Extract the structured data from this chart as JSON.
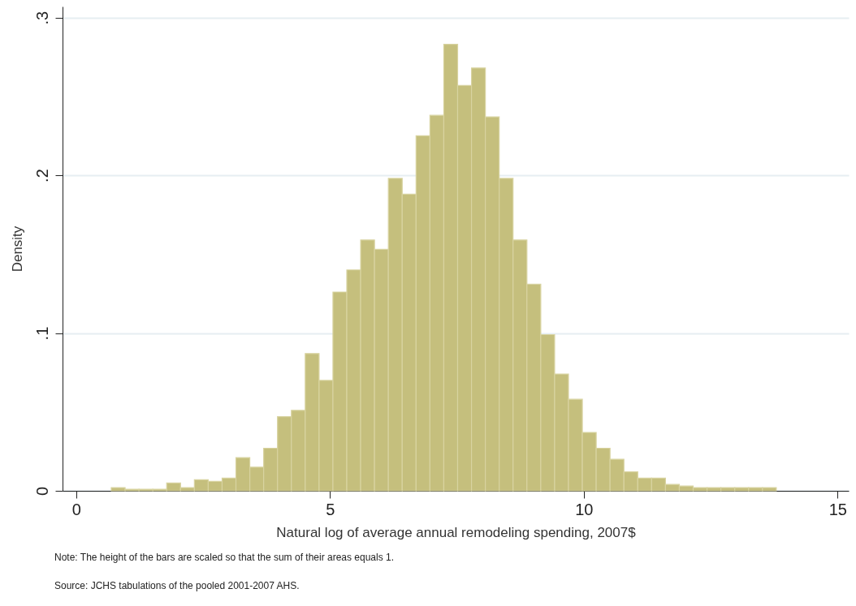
{
  "chart_data": {
    "type": "histogram",
    "xlabel": "Natural log of average annual remodeling spending, 2007$",
    "ylabel": "Density",
    "bins": [
      0.69,
      0.963,
      1.236,
      1.509,
      1.782,
      2.055,
      2.328,
      2.601,
      2.874,
      3.147,
      3.42,
      3.693,
      3.966,
      4.239,
      4.512,
      4.785,
      5.058,
      5.331,
      5.604,
      5.877,
      6.15,
      6.423,
      6.696,
      6.969,
      7.242,
      7.515,
      7.788,
      8.061,
      8.334,
      8.607,
      8.88,
      9.153,
      9.426,
      9.699,
      9.972,
      10.245,
      10.518,
      10.791,
      11.064,
      11.337,
      11.61,
      11.883,
      12.156,
      12.429,
      12.702,
      12.975,
      13.248,
      13.521,
      13.794
    ],
    "values": [
      0.002,
      0.001,
      0.001,
      0.001,
      0.005,
      0.002,
      0.007,
      0.006,
      0.008,
      0.021,
      0.015,
      0.027,
      0.047,
      0.051,
      0.087,
      0.07,
      0.126,
      0.14,
      0.159,
      0.153,
      0.198,
      0.188,
      0.225,
      0.238,
      0.283,
      0.257,
      0.268,
      0.237,
      0.198,
      0.159,
      0.131,
      0.099,
      0.074,
      0.058,
      0.037,
      0.027,
      0.02,
      0.012,
      0.008,
      0.008,
      0.004,
      0.003,
      0.002,
      0.002,
      0.002,
      0.002,
      0.002,
      0.002
    ],
    "color": "#c5bf7d",
    "xlim": [
      -0.27,
      15.22
    ],
    "xticks": [
      0,
      5,
      10,
      15
    ],
    "ylim": [
      0,
      0.307
    ],
    "yticks": [
      0,
      {
        "value": 0.1,
        "label": ".1"
      },
      {
        "value": 0.2,
        "label": ".2"
      },
      {
        "value": 0.3,
        "label": ".3"
      }
    ],
    "grid": "y",
    "annotations": [
      "Note: The height of the bars are scaled so that the sum of their areas equals 1.",
      "Source: JCHS tabulations of the pooled 2001-2007 AHS."
    ]
  }
}
